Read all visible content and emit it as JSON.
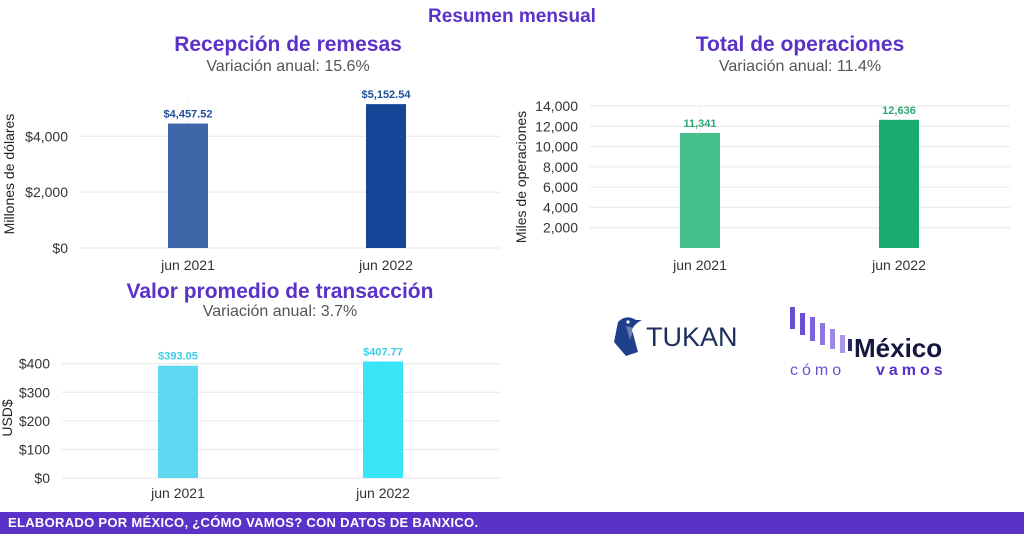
{
  "page": {
    "title": "Resumen mensual",
    "footer": "ELABORADO POR MÉXICO, ¿CÓMO VAMOS? CON DATOS DE BANXICO."
  },
  "logos": {
    "tukan": "TUKAN",
    "mexico_line1": "México",
    "mexico_line2a": "cómo",
    "mexico_line2b": "vamos"
  },
  "colors": {
    "accent": "#5b32c8",
    "remesas_2021": "#3f66a8",
    "remesas_2022": "#154596",
    "ops_2021": "#45c08a",
    "ops_2022": "#17ab6f",
    "valor_2021": "#5dd8f0",
    "valor_2022": "#38e4f6"
  },
  "chart_data": [
    {
      "type": "bar",
      "title": "Recepción de remesas",
      "subtitle": "Variación anual: 15.6%",
      "categories": [
        "jun 2021",
        "jun 2022"
      ],
      "values": [
        4457.52,
        5152.54
      ],
      "data_labels": [
        "$4,457.52",
        "$5,152.54"
      ],
      "ylabel": "Millones de dólares",
      "yticks": [
        0,
        2000,
        4000
      ],
      "ytick_labels": [
        "$0",
        "$2,000",
        "$4,000"
      ],
      "ylim": [
        0,
        5300
      ],
      "grid": true
    },
    {
      "type": "bar",
      "title": "Total de operaciones",
      "subtitle": "Variación anual: 11.4%",
      "categories": [
        "jun 2021",
        "jun 2022"
      ],
      "values": [
        11341,
        12636
      ],
      "data_labels": [
        "11,341",
        "12,636"
      ],
      "ylabel": "Miles de operaciones",
      "yticks": [
        2000,
        4000,
        6000,
        8000,
        10000,
        12000,
        14000
      ],
      "ytick_labels": [
        "2,000",
        "4,000",
        "6,000",
        "8,000",
        "10,000",
        "12,000",
        "14,000"
      ],
      "ylim": [
        0,
        14000
      ],
      "grid": true
    },
    {
      "type": "bar",
      "title": "Valor promedio de transacción",
      "subtitle": "Variación anual: 3.7%",
      "categories": [
        "jun 2021",
        "jun 2022"
      ],
      "values": [
        393.05,
        407.77
      ],
      "data_labels": [
        "$393.05",
        "$407.77"
      ],
      "ylabel": "USD$",
      "yticks": [
        0,
        100,
        200,
        300,
        400
      ],
      "ytick_labels": [
        "$0",
        "$100",
        "$200",
        "$300",
        "$400"
      ],
      "ylim": [
        0,
        420
      ],
      "grid": true
    }
  ]
}
